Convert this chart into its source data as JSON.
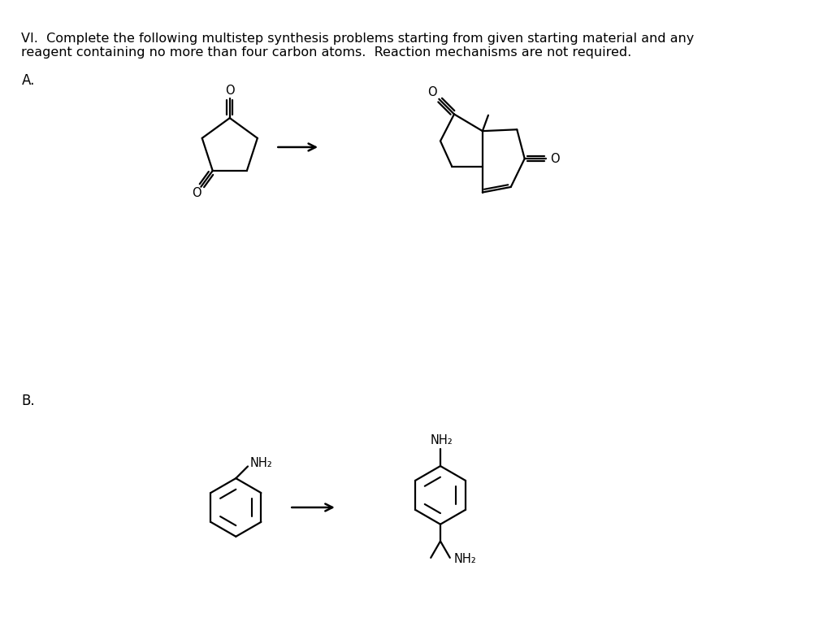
{
  "title_line1": "VI.  Complete the following multistep synthesis problems starting from given starting material and any",
  "title_line2": "reagent containing no more than four carbon atoms.  Reaction mechanisms are not required.",
  "label_A": "A.",
  "label_B": "B.",
  "bg_color": "#ffffff",
  "text_color": "#000000",
  "title_fontsize": 11.5,
  "label_fontsize": 12,
  "mol_fontsize": 10.5,
  "lw": 1.6
}
